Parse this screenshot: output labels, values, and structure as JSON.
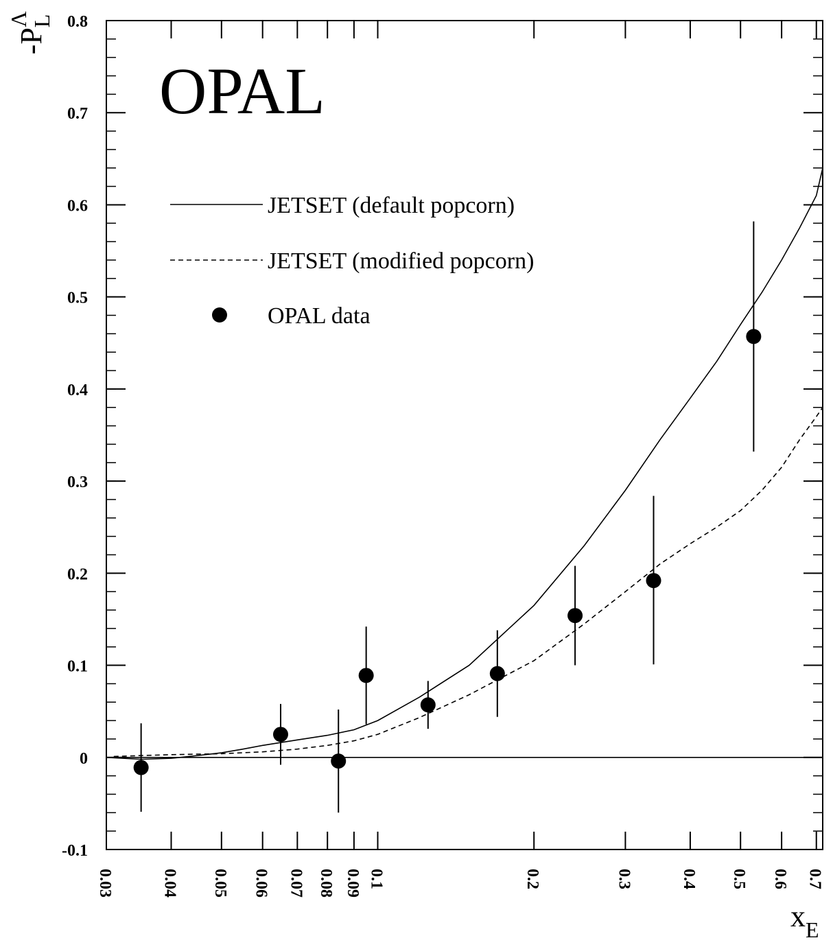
{
  "chart_data": {
    "type": "scatter",
    "logo": "OPAL",
    "ylabel": {
      "main": "-P",
      "sup": "Λ",
      "sub": "L"
    },
    "xlabel": {
      "main": "x",
      "sub": "E"
    },
    "xscale": "log",
    "xlim": [
      0.03,
      0.72
    ],
    "ylim": [
      -0.1,
      0.8
    ],
    "xticks": [
      0.03,
      0.04,
      0.05,
      0.06,
      0.07,
      0.08,
      0.09,
      0.1,
      0.2,
      0.3,
      0.4,
      0.5,
      0.6,
      0.7
    ],
    "xtick_labels": [
      "0.03",
      "0.04",
      "0.05",
      "0.06",
      "0.07",
      "0.08",
      "0.09",
      "0.1",
      "0.2",
      "0.3",
      "0.4",
      "0.5",
      "0.6",
      "0.7"
    ],
    "yticks": [
      -0.1,
      0,
      0.1,
      0.2,
      0.3,
      0.4,
      0.5,
      0.6,
      0.7,
      0.8
    ],
    "ytick_labels": [
      "-0.1",
      "0",
      "0.1",
      "0.2",
      "0.3",
      "0.4",
      "0.5",
      "0.6",
      "0.7",
      "0.8"
    ],
    "reference_line_y": 0,
    "legend": [
      {
        "label": "JETSET (default popcorn)",
        "style": "solid"
      },
      {
        "label": "JETSET (modified popcorn)",
        "style": "dashed"
      },
      {
        "label": "OPAL data",
        "style": "marker"
      }
    ],
    "series": [
      {
        "name": "JETSET (default popcorn)",
        "style": "solid",
        "color": "#000000",
        "x": [
          0.03,
          0.035,
          0.04,
          0.045,
          0.05,
          0.055,
          0.06,
          0.07,
          0.08,
          0.09,
          0.1,
          0.12,
          0.15,
          0.2,
          0.25,
          0.3,
          0.35,
          0.4,
          0.45,
          0.5,
          0.55,
          0.6,
          0.65,
          0.7,
          0.72
        ],
        "y": [
          0.0,
          -0.002,
          -0.001,
          0.002,
          0.005,
          0.009,
          0.013,
          0.019,
          0.024,
          0.03,
          0.04,
          0.065,
          0.1,
          0.165,
          0.23,
          0.29,
          0.345,
          0.39,
          0.43,
          0.47,
          0.505,
          0.54,
          0.575,
          0.61,
          0.64
        ]
      },
      {
        "name": "JETSET (modified popcorn)",
        "style": "dashed",
        "color": "#000000",
        "x": [
          0.031,
          0.035,
          0.04,
          0.05,
          0.06,
          0.07,
          0.08,
          0.09,
          0.1,
          0.12,
          0.15,
          0.2,
          0.25,
          0.3,
          0.35,
          0.4,
          0.45,
          0.5,
          0.55,
          0.6,
          0.65,
          0.7,
          0.72
        ],
        "y": [
          0.001,
          0.002,
          0.003,
          0.004,
          0.006,
          0.009,
          0.013,
          0.018,
          0.025,
          0.043,
          0.068,
          0.105,
          0.145,
          0.18,
          0.21,
          0.232,
          0.25,
          0.268,
          0.29,
          0.315,
          0.345,
          0.37,
          0.38
        ]
      },
      {
        "name": "OPAL data",
        "style": "marker",
        "color": "#000000",
        "points": [
          {
            "x": 0.035,
            "y": -0.011,
            "err_low": -0.059,
            "err_high": 0.037
          },
          {
            "x": 0.065,
            "y": 0.025,
            "err_low": -0.008,
            "err_high": 0.058
          },
          {
            "x": 0.084,
            "y": -0.004,
            "err_low": -0.06,
            "err_high": 0.052
          },
          {
            "x": 0.095,
            "y": 0.089,
            "err_low": 0.036,
            "err_high": 0.142
          },
          {
            "x": 0.125,
            "y": 0.057,
            "err_low": 0.031,
            "err_high": 0.083
          },
          {
            "x": 0.17,
            "y": 0.091,
            "err_low": 0.044,
            "err_high": 0.138
          },
          {
            "x": 0.24,
            "y": 0.154,
            "err_low": 0.1,
            "err_high": 0.208
          },
          {
            "x": 0.34,
            "y": 0.192,
            "err_low": 0.101,
            "err_high": 0.284
          },
          {
            "x": 0.53,
            "y": 0.457,
            "err_low": 0.332,
            "err_high": 0.582
          }
        ]
      }
    ]
  }
}
